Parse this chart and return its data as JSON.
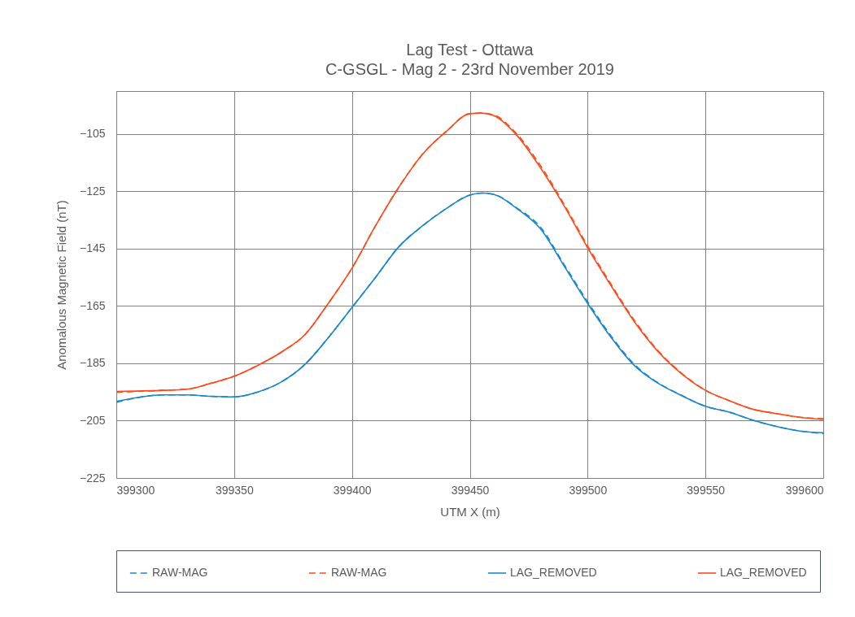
{
  "chart_data": {
    "type": "line",
    "title": "Lag Test - Ottawa",
    "subtitle": "C-GSGL - Mag 2 - 23rd November 2019",
    "xlabel": "UTM X (m)",
    "ylabel": "Anomalous Magnetic Field (nT)",
    "x": [
      399300,
      399320,
      399330,
      399340,
      399350,
      399360,
      399370,
      399380,
      399390,
      399400,
      399410,
      399420,
      399430,
      399440,
      399450,
      399455,
      399460,
      399470,
      399480,
      399490,
      399500,
      399510,
      399520,
      399530,
      399540,
      399550,
      399560,
      399570,
      399580,
      399590,
      399600
    ],
    "series": [
      {
        "name": "RAW-MAG",
        "color": "#1a86d0",
        "line_style": "dashed",
        "values": [
          -198.6,
          -196.0,
          -196.0,
          -196.5,
          -196.7,
          -195.0,
          -191.5,
          -185.4,
          -176.0,
          -165.5,
          -155.0,
          -144.2,
          -137.0,
          -131.0,
          -126.3,
          -125.6,
          -126.0,
          -130.8,
          -137.5,
          -150.5,
          -163.5,
          -175.5,
          -185.5,
          -191.8,
          -196.2,
          -200.0,
          -202.0,
          -204.8,
          -207.0,
          -208.6,
          -209.5
        ]
      },
      {
        "name": "RAW-MAG",
        "color": "#ff4a1a",
        "line_style": "dashed",
        "values": [
          -195.1,
          -194.4,
          -194.0,
          -192.0,
          -189.5,
          -185.7,
          -181.1,
          -175.0,
          -164.0,
          -151.8,
          -137.0,
          -123.4,
          -112.0,
          -104.1,
          -97.9,
          -97.7,
          -98.3,
          -105.0,
          -116.0,
          -129.5,
          -144.0,
          -157.5,
          -170.2,
          -180.7,
          -188.5,
          -194.4,
          -198.0,
          -201.0,
          -202.5,
          -203.8,
          -204.3
        ]
      },
      {
        "name": "LAG_REMOVED",
        "color": "#1a86d0",
        "line_style": "solid",
        "values": [
          -198.3,
          -196.0,
          -196.0,
          -196.5,
          -196.7,
          -195.0,
          -191.5,
          -185.4,
          -176.0,
          -165.5,
          -155.0,
          -144.2,
          -137.0,
          -131.0,
          -126.3,
          -125.6,
          -126.0,
          -131.0,
          -138.1,
          -151.0,
          -164.1,
          -176.0,
          -185.9,
          -192.0,
          -196.3,
          -200.0,
          -202.0,
          -204.8,
          -207.0,
          -208.6,
          -209.2
        ]
      },
      {
        "name": "LAG_REMOVED",
        "color": "#ff4a1a",
        "line_style": "solid",
        "values": [
          -194.8,
          -194.4,
          -194.0,
          -192.0,
          -189.5,
          -185.7,
          -181.1,
          -175.0,
          -164.0,
          -151.8,
          -137.0,
          -123.4,
          -112.0,
          -104.1,
          -97.9,
          -97.7,
          -98.5,
          -105.5,
          -116.8,
          -130.0,
          -144.7,
          -158.0,
          -170.7,
          -181.0,
          -188.7,
          -194.4,
          -198.0,
          -201.0,
          -202.5,
          -203.8,
          -204.6
        ]
      }
    ],
    "xlim": [
      399300,
      399600
    ],
    "xticks": [
      399300,
      399350,
      399400,
      399450,
      399500,
      399550,
      399600
    ],
    "ylim": [
      -225,
      -90
    ],
    "yticks": [
      -225,
      -205,
      -185,
      -165,
      -145,
      -125,
      -105
    ],
    "grid": true,
    "legend": "bottom"
  }
}
